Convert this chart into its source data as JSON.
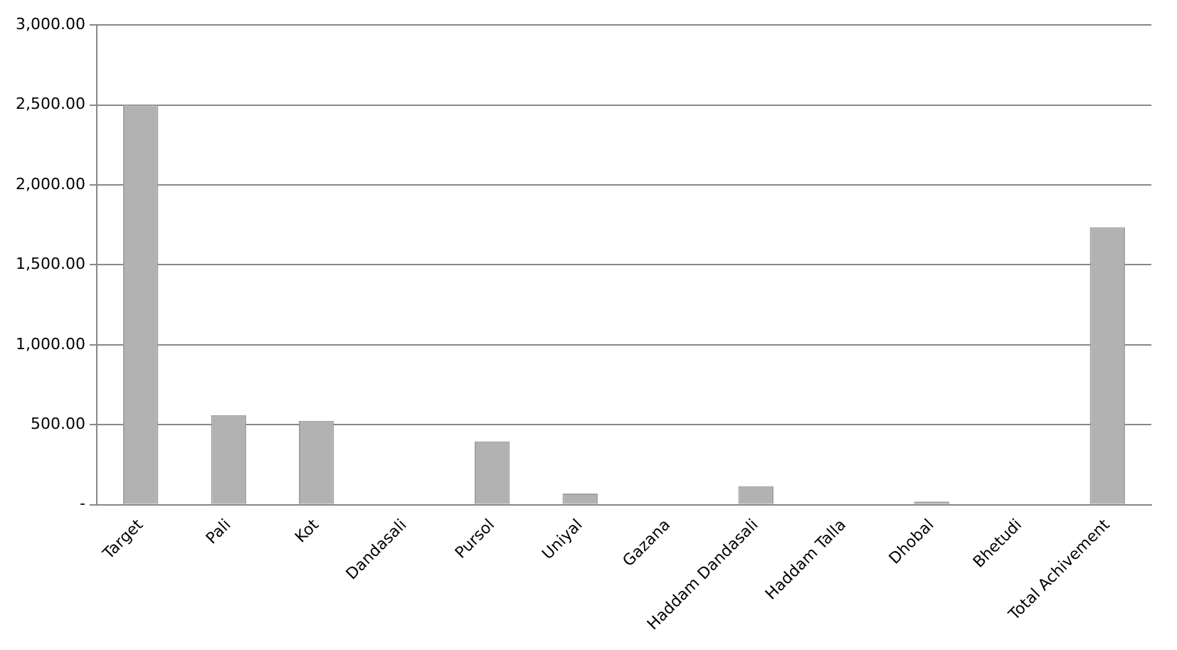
{
  "chart_data": {
    "type": "bar",
    "categories": [
      "Target",
      "Pali",
      "Kot",
      "Dandasali",
      "Pursol",
      "Uniyal",
      "Gazana",
      "Haddam Dandasali",
      "Haddam Talla",
      "Dhobal",
      "Bhetudi",
      "Total Achivement"
    ],
    "values": [
      2500,
      560,
      525,
      0,
      395,
      70,
      0,
      115,
      0,
      20,
      0,
      1735
    ],
    "color": "#b2b2b2",
    "ylim": [
      0,
      3000
    ],
    "yticks": [
      {
        "value": 0,
        "label": "-"
      },
      {
        "value": 500,
        "label": "500.00"
      },
      {
        "value": 1000,
        "label": "1,000.00"
      },
      {
        "value": 1500,
        "label": "1,500.00"
      },
      {
        "value": 2000,
        "label": "2,000.00"
      },
      {
        "value": 2500,
        "label": "2,500.00"
      },
      {
        "value": 3000,
        "label": "3,000.00"
      }
    ],
    "grid": "y",
    "legend": false
  }
}
